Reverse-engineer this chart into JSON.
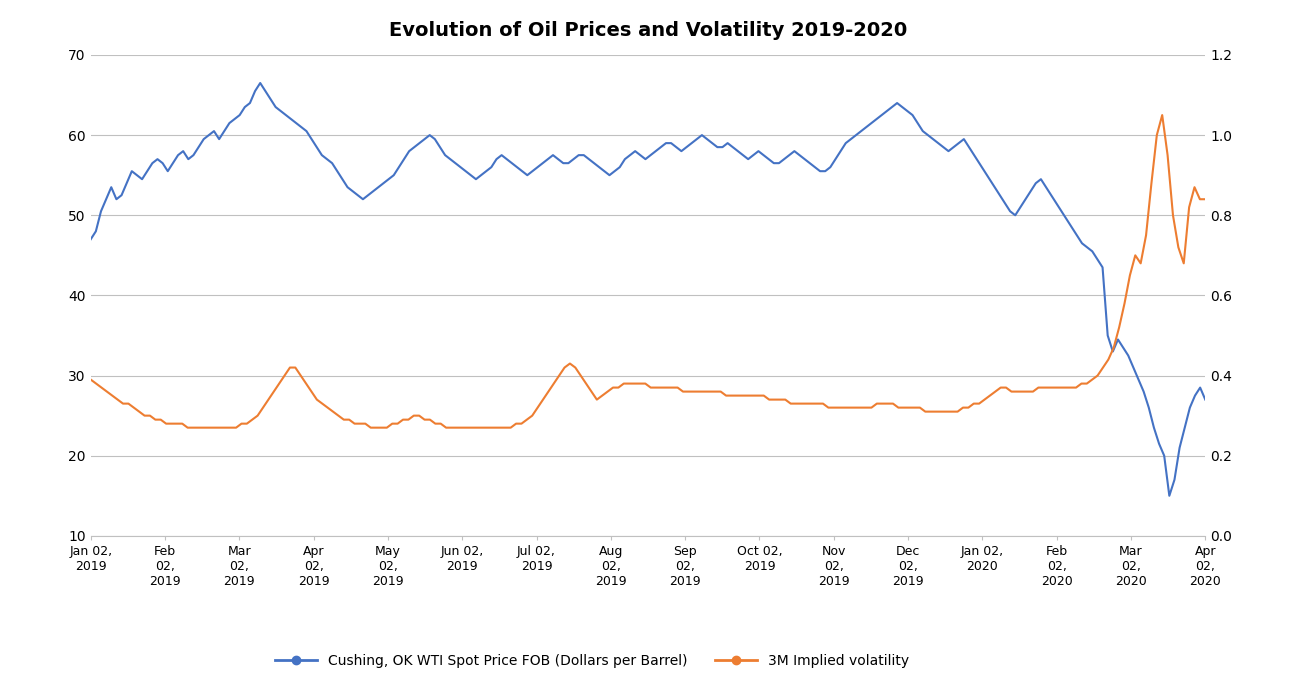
{
  "title": "Evolution of Oil Prices and Volatility 2019-2020",
  "title_fontsize": 14,
  "title_fontweight": "bold",
  "left_ylim": [
    10,
    70
  ],
  "right_ylim": [
    0,
    1.2
  ],
  "left_yticks": [
    10,
    20,
    30,
    40,
    50,
    60,
    70
  ],
  "right_yticks": [
    0,
    0.2,
    0.4,
    0.6,
    0.8,
    1.0,
    1.2
  ],
  "wti_color": "#4472C4",
  "vol_color": "#ED7D31",
  "line_width": 1.5,
  "background_color": "#FFFFFF",
  "grid_color": "#C0C0C0",
  "legend_wti": "Cushing, OK WTI Spot Price FOB (Dollars per Barrel)",
  "legend_vol": "3M Implied volatility",
  "xtick_labels": [
    "Jan 02,\n2019",
    "Feb\n02,\n2019",
    "Mar\n02,\n2019",
    "Apr\n02,\n2019",
    "May\n02,\n2019",
    "Jun 02,\n2019",
    "Jul 02,\n2019",
    "Aug\n02,\n2019",
    "Sep\n02,\n2019",
    "Oct 02,\n2019",
    "Nov\n02,\n2019",
    "Dec\n02,\n2019",
    "Jan 02,\n2020",
    "Feb\n02,\n2020",
    "Mar\n02,\n2020",
    "Apr\n02,\n2020"
  ],
  "wti_prices": [
    47.0,
    48.0,
    50.5,
    52.0,
    53.5,
    52.0,
    52.5,
    54.0,
    55.5,
    55.0,
    54.5,
    55.5,
    56.5,
    57.0,
    56.5,
    55.5,
    56.5,
    57.5,
    58.0,
    57.0,
    57.5,
    58.5,
    59.5,
    60.0,
    60.5,
    59.5,
    60.5,
    61.5,
    62.0,
    62.5,
    63.5,
    64.0,
    65.5,
    66.5,
    65.5,
    64.5,
    63.5,
    63.0,
    62.5,
    62.0,
    61.5,
    61.0,
    60.5,
    59.5,
    58.5,
    57.5,
    57.0,
    56.5,
    55.5,
    54.5,
    53.5,
    53.0,
    52.5,
    52.0,
    52.5,
    53.0,
    53.5,
    54.0,
    54.5,
    55.0,
    56.0,
    57.0,
    58.0,
    58.5,
    59.0,
    59.5,
    60.0,
    59.5,
    58.5,
    57.5,
    57.0,
    56.5,
    56.0,
    55.5,
    55.0,
    54.5,
    55.0,
    55.5,
    56.0,
    57.0,
    57.5,
    57.0,
    56.5,
    56.0,
    55.5,
    55.0,
    55.5,
    56.0,
    56.5,
    57.0,
    57.5,
    57.0,
    56.5,
    56.5,
    57.0,
    57.5,
    57.5,
    57.0,
    56.5,
    56.0,
    55.5,
    55.0,
    55.5,
    56.0,
    57.0,
    57.5,
    58.0,
    57.5,
    57.0,
    57.5,
    58.0,
    58.5,
    59.0,
    59.0,
    58.5,
    58.0,
    58.5,
    59.0,
    59.5,
    60.0,
    59.5,
    59.0,
    58.5,
    58.5,
    59.0,
    58.5,
    58.0,
    57.5,
    57.0,
    57.5,
    58.0,
    57.5,
    57.0,
    56.5,
    56.5,
    57.0,
    57.5,
    58.0,
    57.5,
    57.0,
    56.5,
    56.0,
    55.5,
    55.5,
    56.0,
    57.0,
    58.0,
    59.0,
    59.5,
    60.0,
    60.5,
    61.0,
    61.5,
    62.0,
    62.5,
    63.0,
    63.5,
    64.0,
    63.5,
    63.0,
    62.5,
    61.5,
    60.5,
    60.0,
    59.5,
    59.0,
    58.5,
    58.0,
    58.5,
    59.0,
    59.5,
    58.5,
    57.5,
    56.5,
    55.5,
    54.5,
    53.5,
    52.5,
    51.5,
    50.5,
    50.0,
    51.0,
    52.0,
    53.0,
    54.0,
    54.5,
    53.5,
    52.5,
    51.5,
    50.5,
    49.5,
    48.5,
    47.5,
    46.5,
    46.0,
    45.5,
    44.5,
    43.5,
    35.0,
    33.0,
    34.5,
    33.5,
    32.5,
    31.0,
    29.5,
    28.0,
    26.0,
    23.5,
    21.5,
    20.0,
    15.0,
    17.0,
    21.0,
    23.5,
    26.0,
    27.5,
    28.5,
    27.0
  ],
  "vol_data": [
    0.39,
    0.38,
    0.37,
    0.36,
    0.35,
    0.34,
    0.33,
    0.33,
    0.32,
    0.31,
    0.3,
    0.3,
    0.29,
    0.29,
    0.28,
    0.28,
    0.28,
    0.28,
    0.27,
    0.27,
    0.27,
    0.27,
    0.27,
    0.27,
    0.27,
    0.27,
    0.27,
    0.27,
    0.28,
    0.28,
    0.29,
    0.3,
    0.32,
    0.34,
    0.36,
    0.38,
    0.4,
    0.42,
    0.42,
    0.4,
    0.38,
    0.36,
    0.34,
    0.33,
    0.32,
    0.31,
    0.3,
    0.29,
    0.29,
    0.28,
    0.28,
    0.28,
    0.27,
    0.27,
    0.27,
    0.27,
    0.28,
    0.28,
    0.29,
    0.29,
    0.3,
    0.3,
    0.29,
    0.29,
    0.28,
    0.28,
    0.27,
    0.27,
    0.27,
    0.27,
    0.27,
    0.27,
    0.27,
    0.27,
    0.27,
    0.27,
    0.27,
    0.27,
    0.27,
    0.28,
    0.28,
    0.29,
    0.3,
    0.32,
    0.34,
    0.36,
    0.38,
    0.4,
    0.42,
    0.43,
    0.42,
    0.4,
    0.38,
    0.36,
    0.34,
    0.35,
    0.36,
    0.37,
    0.37,
    0.38,
    0.38,
    0.38,
    0.38,
    0.38,
    0.37,
    0.37,
    0.37,
    0.37,
    0.37,
    0.37,
    0.36,
    0.36,
    0.36,
    0.36,
    0.36,
    0.36,
    0.36,
    0.36,
    0.35,
    0.35,
    0.35,
    0.35,
    0.35,
    0.35,
    0.35,
    0.35,
    0.34,
    0.34,
    0.34,
    0.34,
    0.33,
    0.33,
    0.33,
    0.33,
    0.33,
    0.33,
    0.33,
    0.32,
    0.32,
    0.32,
    0.32,
    0.32,
    0.32,
    0.32,
    0.32,
    0.32,
    0.33,
    0.33,
    0.33,
    0.33,
    0.32,
    0.32,
    0.32,
    0.32,
    0.32,
    0.31,
    0.31,
    0.31,
    0.31,
    0.31,
    0.31,
    0.31,
    0.32,
    0.32,
    0.33,
    0.33,
    0.34,
    0.35,
    0.36,
    0.37,
    0.37,
    0.36,
    0.36,
    0.36,
    0.36,
    0.36,
    0.37,
    0.37,
    0.37,
    0.37,
    0.37,
    0.37,
    0.37,
    0.37,
    0.38,
    0.38,
    0.39,
    0.4,
    0.42,
    0.44,
    0.47,
    0.52,
    0.58,
    0.65,
    0.7,
    0.68,
    0.75,
    0.88,
    1.0,
    1.05,
    0.95,
    0.8,
    0.72,
    0.68,
    0.82,
    0.87,
    0.84,
    0.84
  ]
}
